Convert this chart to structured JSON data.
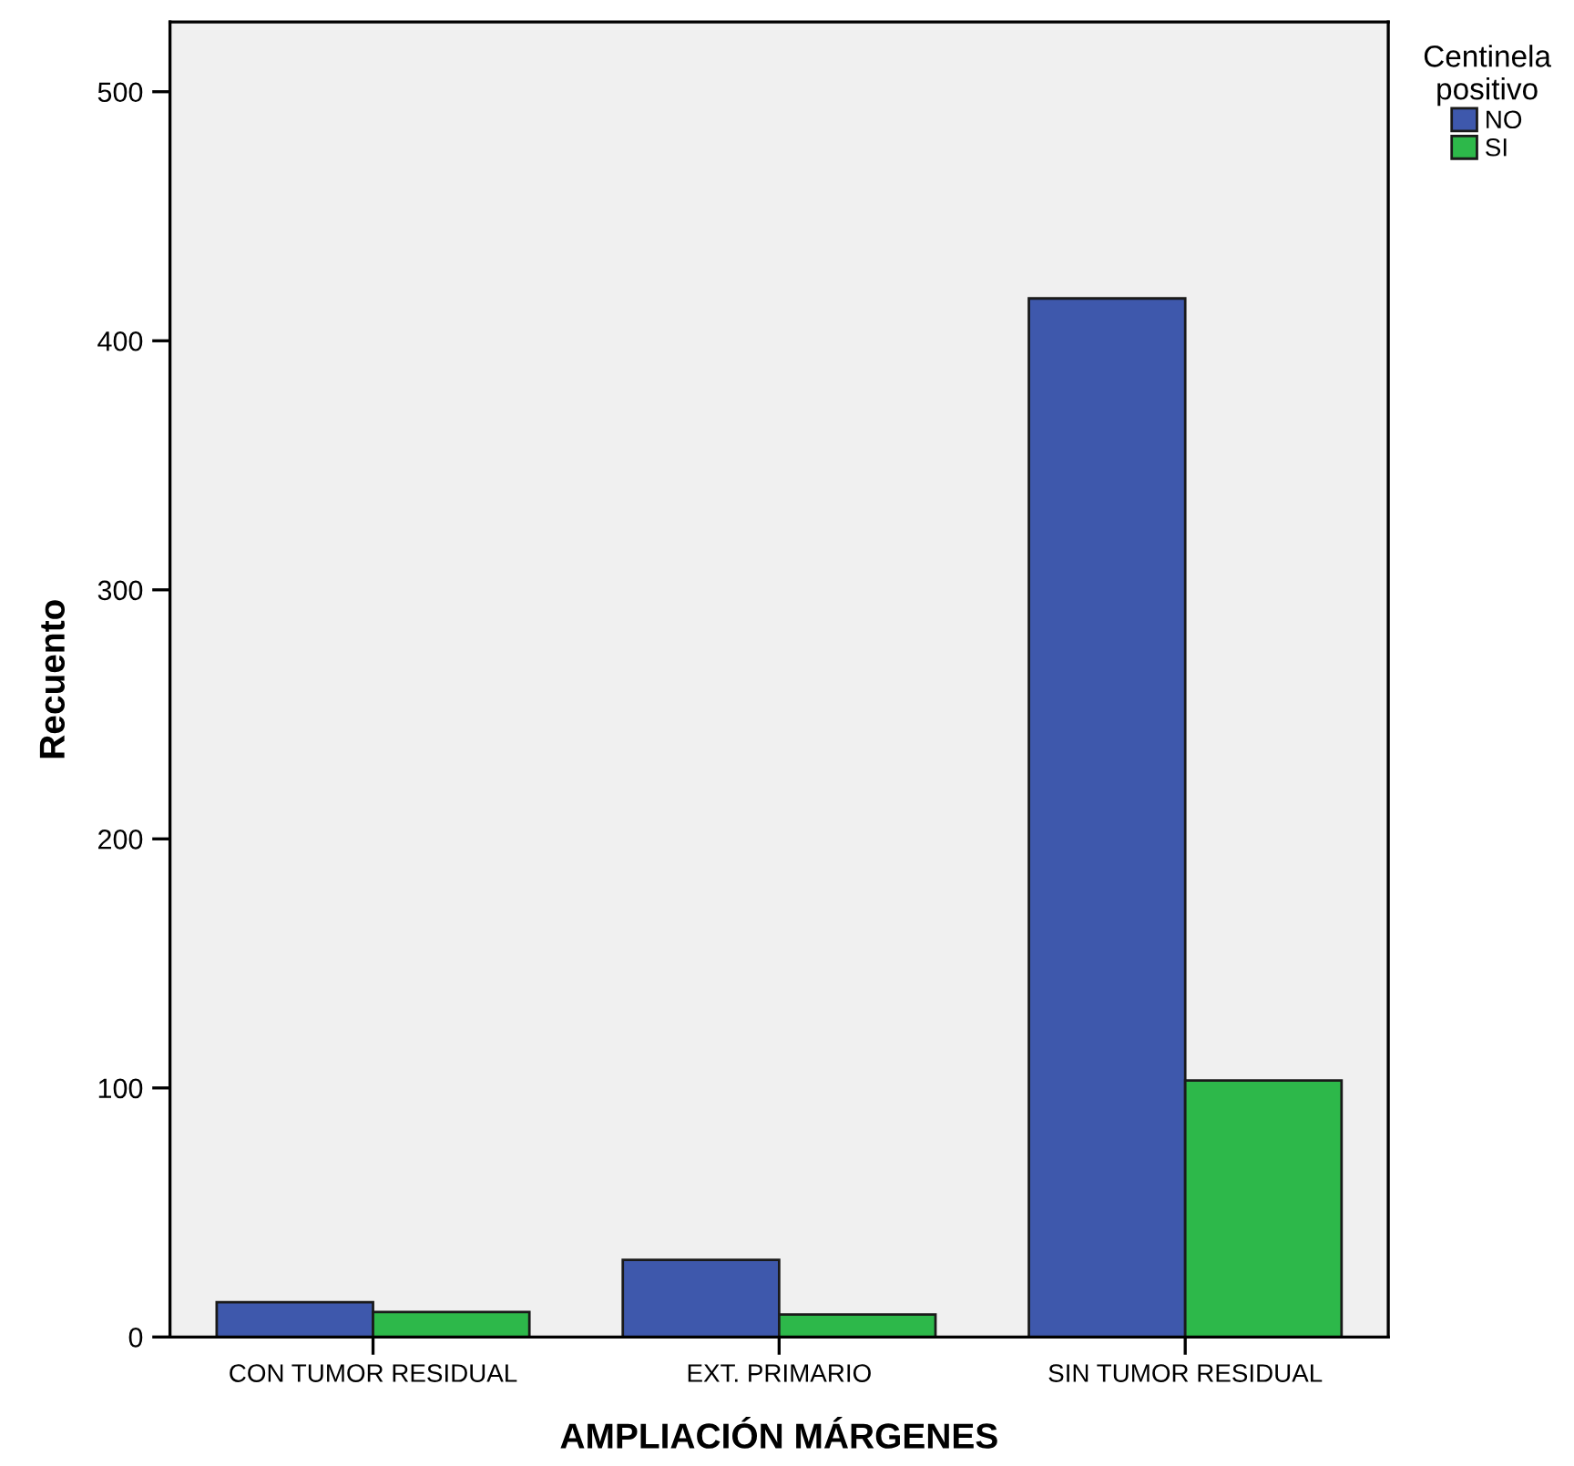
{
  "chart_data": {
    "type": "bar",
    "xlabel": "AMPLIACIÓN MÁRGENES",
    "ylabel": "Recuento",
    "legend_title": "Centinela\npositivo",
    "categories": [
      "CON TUMOR RESIDUAL",
      "EXT. PRIMARIO",
      "SIN TUMOR RESIDUAL"
    ],
    "series": [
      {
        "name": "NO",
        "color": "#3e58ac",
        "values": [
          14,
          31,
          417
        ]
      },
      {
        "name": "SI",
        "color": "#2db84a",
        "values": [
          10,
          9,
          103
        ]
      }
    ],
    "ylim": [
      0,
      528
    ],
    "yticks": [
      0,
      100,
      200,
      300,
      400,
      500
    ],
    "grid": false,
    "legend": "top right"
  }
}
